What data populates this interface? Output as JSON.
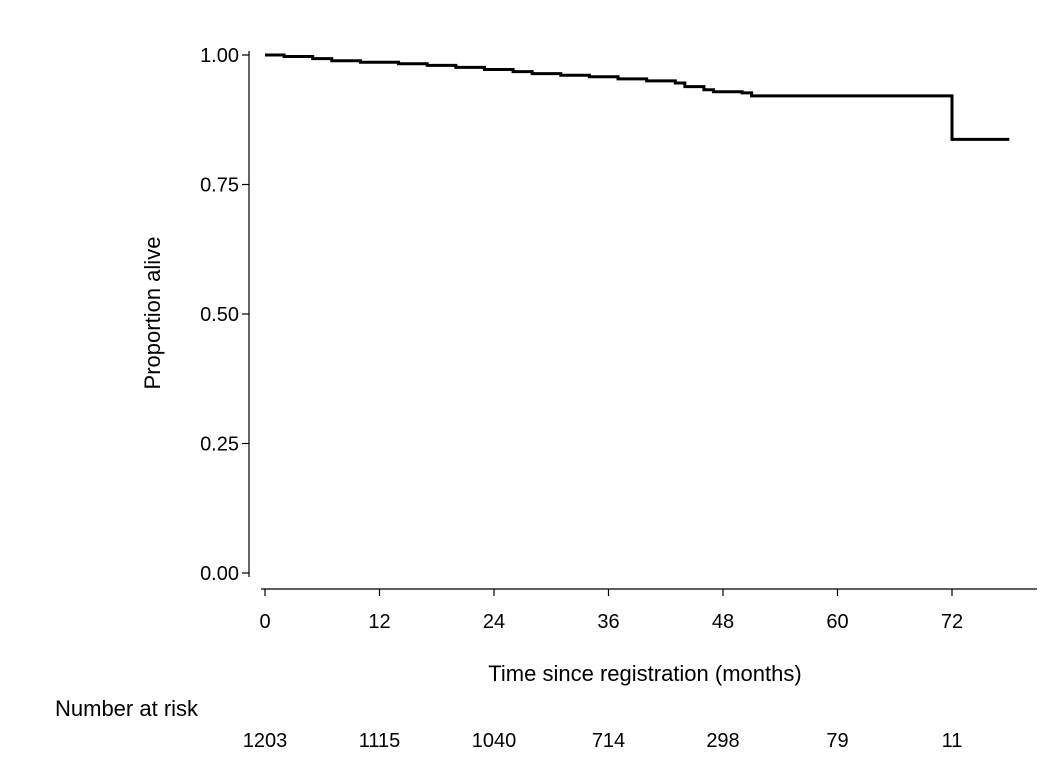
{
  "chart_data": {
    "type": "line",
    "title": "",
    "xlabel": "Time since registration (months)",
    "ylabel": "Proportion alive",
    "xlim": [
      0,
      78
    ],
    "ylim": [
      0,
      1
    ],
    "x_ticks": [
      0,
      12,
      24,
      36,
      48,
      60,
      72
    ],
    "y_ticks": [
      "0.00",
      "0.25",
      "0.50",
      "0.75",
      "1.00"
    ],
    "grid": false,
    "legend": "none",
    "line_color": "#000000",
    "series": [
      {
        "step": true,
        "x": [
          0,
          2,
          5,
          7,
          10,
          14,
          17,
          20,
          23,
          26,
          28,
          31,
          34,
          37,
          40,
          43,
          44,
          46,
          47,
          50,
          51,
          72,
          72,
          78
        ],
        "y": [
          1.0,
          0.997,
          0.993,
          0.989,
          0.986,
          0.983,
          0.98,
          0.976,
          0.972,
          0.968,
          0.964,
          0.961,
          0.958,
          0.954,
          0.95,
          0.946,
          0.939,
          0.933,
          0.929,
          0.927,
          0.921,
          0.921,
          0.837,
          0.837
        ]
      }
    ],
    "risk_table": {
      "title": "Number at risk",
      "times": [
        0,
        12,
        24,
        36,
        48,
        60,
        72
      ],
      "values": [
        "1203",
        "1115",
        "1040",
        "714",
        "298",
        "79",
        "11"
      ]
    }
  }
}
